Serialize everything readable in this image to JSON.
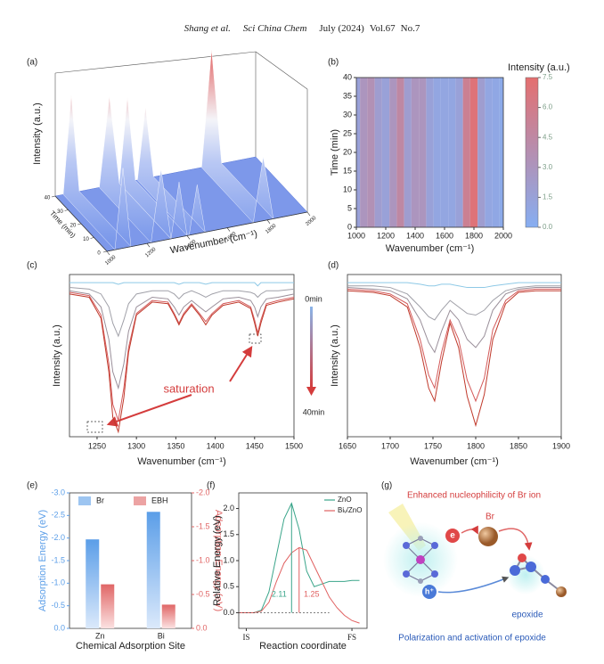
{
  "header": {
    "authors": "Shang et al.",
    "journal": "Sci China Chem",
    "date": "July (2024)",
    "volume": "Vol.67",
    "issue": "No.7"
  },
  "chart_data": [
    {
      "type": "surface3d",
      "label": "(a)",
      "zlabel": "Intensity (a.u.)",
      "ylabel": "Time (min)",
      "xlabel": "Wavenumber (cm⁻¹)",
      "xlim": [
        1000,
        2000
      ],
      "xticks": [
        1000,
        1200,
        1400,
        1600,
        1800,
        2000
      ],
      "ylim": [
        0,
        40
      ],
      "yticks": [
        0,
        10,
        20,
        30,
        40
      ]
    },
    {
      "type": "heatmap",
      "label": "(b)",
      "xlabel": "Wavenumber (cm⁻¹)",
      "ylabel": "Time (min)",
      "colorbar_title": "Intensity (a.u.)",
      "x": [
        1000,
        1050,
        1100,
        1150,
        1200,
        1250,
        1300,
        1350,
        1400,
        1450,
        1500,
        1550,
        1600,
        1650,
        1700,
        1750,
        1800,
        1850,
        1900,
        1950,
        2000
      ],
      "values": [
        1.5,
        3,
        3.5,
        2,
        1.5,
        3,
        4.5,
        2,
        3,
        3,
        1.5,
        1,
        1,
        1,
        1.5,
        5.5,
        7,
        2,
        1,
        0.8,
        0.5
      ],
      "xlim": [
        1000,
        2000
      ],
      "xticks": [
        1000,
        1200,
        1400,
        1600,
        1800,
        2000
      ],
      "ylim": [
        0,
        40
      ],
      "yticks": [
        0,
        5,
        10,
        15,
        20,
        25,
        30,
        35,
        40
      ],
      "clim": [
        0,
        7.5
      ],
      "colors": [
        "#86aef2",
        "#e46f6f"
      ],
      "cticks": [
        {
          "value": 0,
          "label": "0.0"
        },
        1.5,
        {
          "value": 3,
          "label": "3.0"
        },
        4.5,
        {
          "value": 6,
          "label": "6.0"
        },
        7.5
      ]
    },
    {
      "type": "line",
      "label": "(c)",
      "xlabel": "Wavenumber (cm⁻¹)",
      "ylabel": "Intensity (a.u.)",
      "x": [
        1215,
        1240,
        1255,
        1265,
        1270,
        1277,
        1284,
        1290,
        1300,
        1320,
        1340,
        1348,
        1354,
        1360,
        1370,
        1380,
        1388,
        1396,
        1410,
        1430,
        1445,
        1450,
        1454,
        1458,
        1465,
        1480,
        1500
      ],
      "series": [
        {
          "color": "#8ec9e6",
          "values": [
            0.95,
            0.95,
            0.95,
            0.95,
            0.95,
            0.94,
            0.95,
            0.95,
            0.95,
            0.95,
            0.95,
            0.95,
            0.94,
            0.95,
            0.95,
            0.95,
            0.94,
            0.95,
            0.95,
            0.95,
            0.95,
            0.95,
            0.93,
            0.95,
            0.95,
            0.95,
            0.95
          ]
        },
        {
          "color": "#a0a0a8",
          "values": [
            0.92,
            0.91,
            0.88,
            0.8,
            0.7,
            0.62,
            0.72,
            0.82,
            0.88,
            0.9,
            0.9,
            0.88,
            0.85,
            0.88,
            0.9,
            0.88,
            0.86,
            0.88,
            0.9,
            0.9,
            0.89,
            0.88,
            0.86,
            0.88,
            0.9,
            0.9,
            0.91
          ]
        },
        {
          "color": "#9a8f9a",
          "values": [
            0.9,
            0.88,
            0.8,
            0.6,
            0.4,
            0.3,
            0.45,
            0.65,
            0.8,
            0.86,
            0.85,
            0.8,
            0.75,
            0.8,
            0.84,
            0.8,
            0.77,
            0.8,
            0.85,
            0.86,
            0.84,
            0.8,
            0.74,
            0.8,
            0.85,
            0.86,
            0.88
          ]
        },
        {
          "color": "#d45a5a",
          "values": [
            0.89,
            0.87,
            0.75,
            0.45,
            0.2,
            0.1,
            0.3,
            0.55,
            0.76,
            0.84,
            0.83,
            0.76,
            0.7,
            0.76,
            0.82,
            0.76,
            0.71,
            0.76,
            0.82,
            0.84,
            0.8,
            0.72,
            0.64,
            0.72,
            0.82,
            0.84,
            0.86
          ]
        },
        {
          "color": "#c0392b",
          "values": [
            0.88,
            0.86,
            0.73,
            0.4,
            0.12,
            0.03,
            0.24,
            0.52,
            0.75,
            0.83,
            0.82,
            0.75,
            0.69,
            0.75,
            0.81,
            0.75,
            0.69,
            0.75,
            0.81,
            0.83,
            0.79,
            0.7,
            0.62,
            0.7,
            0.81,
            0.83,
            0.85
          ]
        }
      ],
      "xlim": [
        1215,
        1500
      ],
      "xticks": [
        1250,
        1300,
        1350,
        1400,
        1450,
        1500
      ],
      "ylim": [
        0,
        1
      ],
      "annotations": {
        "start": "0min",
        "end": "40min",
        "note": "saturation"
      }
    },
    {
      "type": "line",
      "label": "(d)",
      "xlabel": "Wavenumber (cm⁻¹)",
      "ylabel": "Intensity (a.u.)",
      "x": [
        1650,
        1680,
        1700,
        1720,
        1735,
        1745,
        1752,
        1760,
        1770,
        1780,
        1790,
        1800,
        1810,
        1820,
        1835,
        1850,
        1870,
        1900
      ],
      "series": [
        {
          "color": "#8ec9e6",
          "values": [
            0.95,
            0.95,
            0.95,
            0.95,
            0.94,
            0.93,
            0.93,
            0.94,
            0.94,
            0.93,
            0.92,
            0.92,
            0.92,
            0.93,
            0.94,
            0.95,
            0.95,
            0.95
          ]
        },
        {
          "color": "#a0a0a8",
          "values": [
            0.93,
            0.93,
            0.92,
            0.88,
            0.8,
            0.74,
            0.72,
            0.78,
            0.84,
            0.8,
            0.76,
            0.75,
            0.78,
            0.84,
            0.9,
            0.92,
            0.93,
            0.93
          ]
        },
        {
          "color": "#9a8f9a",
          "values": [
            0.92,
            0.91,
            0.9,
            0.85,
            0.72,
            0.58,
            0.52,
            0.65,
            0.78,
            0.72,
            0.6,
            0.55,
            0.62,
            0.78,
            0.88,
            0.91,
            0.92,
            0.92
          ]
        },
        {
          "color": "#d45a5a",
          "values": [
            0.91,
            0.9,
            0.88,
            0.82,
            0.6,
            0.38,
            0.3,
            0.52,
            0.72,
            0.6,
            0.35,
            0.22,
            0.36,
            0.66,
            0.84,
            0.9,
            0.91,
            0.91
          ]
        },
        {
          "color": "#c0392b",
          "values": [
            0.9,
            0.89,
            0.87,
            0.8,
            0.55,
            0.3,
            0.22,
            0.46,
            0.7,
            0.55,
            0.25,
            0.07,
            0.26,
            0.6,
            0.82,
            0.89,
            0.9,
            0.9
          ]
        }
      ],
      "xlim": [
        1650,
        1900
      ],
      "xticks": [
        1650,
        1700,
        1750,
        1800,
        1850,
        1900
      ],
      "ylim": [
        0,
        1
      ]
    },
    {
      "type": "bar",
      "label": "(e)",
      "xlabel": "Chemical Adsorption Site",
      "ylabel": "Adsorption Energy (eV)",
      "y2label": "Adsorption Energy (eV)",
      "categories": [
        "Zn",
        "Bi"
      ],
      "series": [
        {
          "name": "Br",
          "color": "#5b9ee8",
          "values": [
            -1.97,
            -2.58
          ]
        },
        {
          "name": "EBH",
          "color": "#e06666",
          "axis": "y2",
          "values": [
            -0.65,
            -0.35
          ]
        }
      ],
      "ylim": [
        0,
        -3
      ],
      "yticks": [
        {
          "value": -3,
          "label": "-3.0"
        },
        -2.5,
        {
          "value": -2,
          "label": "-2.0"
        },
        -1.5,
        {
          "value": -1,
          "label": "-1.0"
        },
        -0.5,
        {
          "value": 0,
          "label": "0.0"
        }
      ],
      "y2lim": [
        0,
        -2
      ],
      "y2ticks": [
        {
          "value": -2,
          "label": "-2.0"
        },
        -1.5,
        {
          "value": -1,
          "label": "-1.0"
        },
        -0.5,
        {
          "value": 0,
          "label": "0.0"
        }
      ]
    },
    {
      "type": "line",
      "label": "(f)",
      "xlabel": "Reaction coordinate",
      "ylabel": "Relative Energy (eV)",
      "legend": "upper right",
      "x": [
        0,
        0.5,
        1,
        1.5,
        2,
        2.5,
        3,
        3.5,
        4,
        4.5,
        5,
        5.5,
        6,
        6.5,
        7,
        7.5,
        8
      ],
      "series": [
        {
          "name": "ZnO",
          "color": "#3aa58a",
          "values": [
            0,
            0,
            0,
            0.05,
            0.4,
            1.1,
            1.8,
            2.1,
            1.6,
            0.8,
            0.5,
            0.55,
            0.6,
            0.6,
            0.6,
            0.62,
            0.62
          ]
        },
        {
          "name": "Biᵥ/ZnO",
          "color": "#e06060",
          "values": [
            0,
            0,
            0,
            0.03,
            0.2,
            0.6,
            0.95,
            1.15,
            1.25,
            1.2,
            0.9,
            0.6,
            0.3,
            0.1,
            -0.05,
            -0.15,
            -0.2
          ]
        }
      ],
      "xlim": [
        0,
        8.5
      ],
      "xticks": [
        {
          "value": 0.5,
          "label": "IS"
        },
        {
          "value": 7.5,
          "label": "FS"
        }
      ],
      "ylim": [
        -0.3,
        2.3
      ],
      "yticks": [
        {
          "value": 0,
          "label": "0.0"
        },
        0.5,
        {
          "value": 1,
          "label": "1.0"
        },
        1.5,
        {
          "value": 2,
          "label": "2.0"
        }
      ],
      "annotations": [
        "2.11",
        "1.25"
      ]
    }
  ],
  "diagram": {
    "label": "(g)",
    "title": "Enhanced nucleophilicity of Br ion",
    "electron": "e",
    "hole": "h⁺",
    "bromide": "Br",
    "product": "epoxide",
    "caption": "Polarization and activation of epoxide"
  }
}
